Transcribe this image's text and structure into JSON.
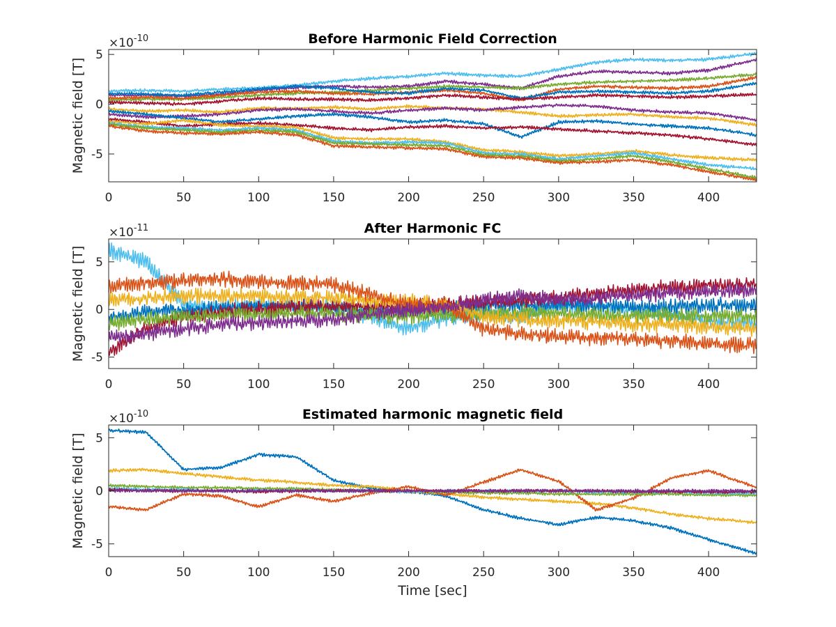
{
  "chart_data": [
    {
      "type": "line",
      "title": "Before Harmonic Field Correction",
      "ylabel": "Magnetic field [T]",
      "xlabel": "",
      "exponent_base": "×10",
      "exponent_power": "-10",
      "xlim": [
        0,
        432
      ],
      "ylim": [
        -7.8,
        5.5
      ],
      "xticks": [
        0,
        50,
        100,
        150,
        200,
        250,
        300,
        350,
        400
      ],
      "yticks": [
        -5,
        0,
        5
      ],
      "grid": false,
      "legend": "none",
      "x": [
        0,
        25,
        50,
        75,
        100,
        125,
        150,
        175,
        200,
        225,
        250,
        275,
        300,
        325,
        350,
        375,
        400,
        432
      ],
      "series": [
        {
          "color": "#4DBEEE",
          "values": [
            1.3,
            1.4,
            1.3,
            1.5,
            1.6,
            1.9,
            2.3,
            2.6,
            2.8,
            3.1,
            2.9,
            2.8,
            3.5,
            4.2,
            4.5,
            4.4,
            4.5,
            5.1
          ]
        },
        {
          "color": "#7E2F8E",
          "values": [
            0.9,
            0.9,
            0.8,
            1.0,
            1.4,
            1.7,
            1.8,
            1.7,
            1.8,
            2.3,
            2.0,
            1.6,
            2.8,
            3.3,
            3.2,
            3.1,
            3.4,
            4.5
          ]
        },
        {
          "color": "#77AC30",
          "values": [
            0.4,
            0.5,
            0.5,
            0.7,
            0.9,
            1.1,
            1.2,
            1.4,
            1.6,
            1.8,
            1.7,
            1.6,
            2.0,
            2.2,
            2.3,
            2.4,
            2.6,
            3.0
          ]
        },
        {
          "color": "#D95319",
          "values": [
            0.6,
            0.7,
            0.6,
            0.9,
            1.2,
            1.3,
            1.1,
            1.0,
            1.2,
            1.4,
            1.1,
            0.4,
            1.5,
            1.8,
            1.7,
            1.6,
            1.8,
            2.7
          ]
        },
        {
          "color": "#0072BD",
          "values": [
            1.1,
            1.0,
            0.9,
            1.2,
            1.5,
            1.8,
            1.6,
            1.2,
            1.1,
            1.6,
            1.4,
            0.6,
            1.2,
            1.3,
            1.2,
            1.1,
            1.3,
            2.1
          ]
        },
        {
          "color": "#A2142F",
          "values": [
            0.2,
            0.1,
            0.0,
            0.3,
            0.6,
            0.5,
            0.5,
            0.4,
            0.6,
            0.9,
            0.7,
            0.5,
            0.7,
            0.9,
            0.8,
            0.7,
            0.8,
            1.0
          ]
        },
        {
          "color": "#EDB120",
          "values": [
            -0.5,
            -0.7,
            -0.6,
            -0.8,
            -0.4,
            -0.4,
            -0.3,
            -0.5,
            -0.2,
            -0.4,
            -0.5,
            -0.8,
            -1.2,
            -1.1,
            -1.0,
            -1.3,
            -1.4,
            -2.1
          ]
        },
        {
          "color": "#7E2F8E",
          "values": [
            -1.0,
            -1.3,
            -1.2,
            -1.0,
            -0.6,
            -0.5,
            -0.7,
            -0.9,
            -0.6,
            -0.4,
            -0.6,
            -0.3,
            -0.1,
            -0.2,
            -0.6,
            -0.8,
            -0.9,
            -1.6
          ]
        },
        {
          "color": "#0072BD",
          "values": [
            -0.7,
            -1.0,
            -1.4,
            -1.8,
            -1.5,
            -1.2,
            -1.0,
            -1.3,
            -1.8,
            -1.6,
            -2.0,
            -3.3,
            -1.8,
            -1.7,
            -2.0,
            -2.2,
            -2.4,
            -3.1
          ]
        },
        {
          "color": "#A2142F",
          "values": [
            -1.5,
            -1.8,
            -2.2,
            -2.0,
            -1.9,
            -2.1,
            -2.4,
            -2.6,
            -2.3,
            -2.2,
            -2.4,
            -2.3,
            -2.5,
            -2.7,
            -2.9,
            -3.1,
            -3.5,
            -4.1
          ]
        },
        {
          "color": "#EDB120",
          "values": [
            -1.7,
            -2.0,
            -1.6,
            -2.1,
            -2.2,
            -2.3,
            -3.4,
            -3.5,
            -3.5,
            -3.8,
            -4.6,
            -4.8,
            -5.2,
            -5.0,
            -4.7,
            -5.1,
            -5.4,
            -5.6
          ]
        },
        {
          "color": "#4DBEEE",
          "values": [
            -1.9,
            -2.3,
            -2.4,
            -2.6,
            -2.4,
            -2.6,
            -3.7,
            -3.9,
            -3.8,
            -3.9,
            -4.9,
            -5.0,
            -5.5,
            -5.2,
            -4.9,
            -5.5,
            -6.1,
            -6.5
          ]
        },
        {
          "color": "#77AC30",
          "values": [
            -2.0,
            -2.4,
            -2.6,
            -2.8,
            -2.6,
            -2.8,
            -3.9,
            -4.0,
            -4.1,
            -4.2,
            -5.1,
            -5.2,
            -5.7,
            -5.5,
            -5.2,
            -5.8,
            -6.5,
            -7.4
          ]
        },
        {
          "color": "#D95319",
          "values": [
            -2.2,
            -2.7,
            -2.9,
            -3.0,
            -2.8,
            -3.1,
            -4.2,
            -4.3,
            -4.4,
            -4.5,
            -5.3,
            -5.4,
            -5.9,
            -5.8,
            -5.6,
            -6.1,
            -6.8,
            -7.6
          ]
        }
      ]
    },
    {
      "type": "line",
      "title": "After Harmonic FC",
      "ylabel": "Magnetic field [T]",
      "xlabel": "",
      "exponent_base": "×10",
      "exponent_power": "-11",
      "xlim": [
        0,
        432
      ],
      "ylim": [
        -6.2,
        7.4
      ],
      "xticks": [
        0,
        50,
        100,
        150,
        200,
        250,
        300,
        350,
        400
      ],
      "yticks": [
        -5,
        0,
        5
      ],
      "grid": false,
      "legend": "none",
      "x": [
        0,
        25,
        50,
        75,
        100,
        125,
        150,
        175,
        200,
        225,
        250,
        275,
        300,
        325,
        350,
        375,
        400,
        432
      ],
      "series": [
        {
          "color": "#4DBEEE",
          "values": [
            6.2,
            5.0,
            0.5,
            0.3,
            0.5,
            0.4,
            0.3,
            -0.8,
            -2.0,
            -0.9,
            -0.5,
            -0.7,
            0.2,
            0.4,
            -0.2,
            -0.6,
            -1.2,
            -1.4
          ]
        },
        {
          "color": "#0072BD",
          "values": [
            -1.0,
            -0.3,
            0.0,
            0.2,
            0.4,
            0.3,
            0.2,
            0.0,
            -0.3,
            0.0,
            0.3,
            0.4,
            0.5,
            0.4,
            0.2,
            0.3,
            0.4,
            0.5
          ]
        },
        {
          "color": "#A2142F",
          "values": [
            -4.5,
            -2.0,
            -0.7,
            -0.3,
            0.0,
            0.3,
            0.4,
            0.3,
            0.3,
            0.5,
            0.8,
            1.0,
            1.3,
            1.6,
            2.0,
            2.3,
            2.5,
            2.6
          ]
        },
        {
          "color": "#77AC30",
          "values": [
            -1.5,
            -1.0,
            -0.8,
            -0.6,
            -0.5,
            -0.4,
            -0.5,
            -0.6,
            -0.7,
            -0.6,
            -0.5,
            -0.4,
            -0.5,
            -0.6,
            -0.7,
            -0.6,
            -0.7,
            -0.8
          ]
        },
        {
          "color": "#EDB120",
          "values": [
            1.0,
            1.2,
            1.4,
            1.5,
            1.4,
            1.3,
            1.2,
            0.9,
            0.8,
            0.6,
            -0.8,
            -1.0,
            -1.2,
            -1.3,
            -1.5,
            -1.6,
            -1.8,
            -2.0
          ]
        },
        {
          "color": "#D95319",
          "values": [
            2.5,
            2.8,
            3.0,
            3.2,
            3.0,
            2.8,
            2.6,
            1.5,
            0.5,
            0.4,
            -2.0,
            -2.5,
            -2.9,
            -3.0,
            -3.1,
            -3.3,
            -3.6,
            -3.8
          ]
        },
        {
          "color": "#7E2F8E",
          "values": [
            -3.0,
            -2.5,
            -2.0,
            -1.6,
            -1.4,
            -1.2,
            -1.1,
            -0.5,
            0.0,
            0.3,
            0.9,
            1.4,
            1.0,
            1.2,
            1.5,
            1.7,
            1.9,
            2.1
          ]
        }
      ]
    },
    {
      "type": "line",
      "title": "Estimated harmonic magnetic field",
      "ylabel": "Magnetic field [T]",
      "xlabel": "Time [sec]",
      "exponent_base": "×10",
      "exponent_power": "-10",
      "xlim": [
        0,
        432
      ],
      "ylim": [
        -6.2,
        6.2
      ],
      "xticks": [
        0,
        50,
        100,
        150,
        200,
        250,
        300,
        350,
        400
      ],
      "yticks": [
        -5,
        0,
        5
      ],
      "grid": false,
      "legend": "none",
      "x": [
        0,
        25,
        50,
        75,
        100,
        125,
        150,
        175,
        200,
        225,
        250,
        275,
        300,
        325,
        350,
        375,
        400,
        432
      ],
      "series": [
        {
          "color": "#0072BD",
          "values": [
            5.7,
            5.5,
            2.0,
            2.2,
            3.4,
            3.2,
            1.0,
            0.2,
            0.0,
            -0.5,
            -1.8,
            -2.6,
            -3.2,
            -2.5,
            -2.8,
            -3.5,
            -4.6,
            -5.9
          ]
        },
        {
          "color": "#EDB120",
          "values": [
            1.9,
            2.0,
            1.6,
            1.3,
            1.0,
            0.8,
            0.5,
            0.4,
            0.0,
            -0.3,
            -0.6,
            -0.8,
            -1.0,
            -1.2,
            -1.6,
            -2.2,
            -2.6,
            -3.0
          ]
        },
        {
          "color": "#D95319",
          "values": [
            -1.5,
            -1.8,
            -0.3,
            -0.5,
            -1.5,
            -0.4,
            -1.0,
            -0.2,
            0.4,
            -0.4,
            0.8,
            2.0,
            0.9,
            -1.8,
            -0.7,
            1.2,
            1.9,
            0.3
          ]
        },
        {
          "color": "#77AC30",
          "values": [
            0.5,
            0.4,
            0.3,
            0.3,
            0.2,
            0.2,
            0.1,
            0.0,
            -0.1,
            -0.1,
            -0.2,
            -0.2,
            -0.3,
            -0.3,
            -0.3,
            -0.3,
            -0.4,
            -0.4
          ]
        },
        {
          "color": "#4DBEEE",
          "values": [
            0.2,
            0.1,
            0.1,
            0.0,
            0.0,
            0.0,
            0.0,
            0.0,
            -0.1,
            0.0,
            0.0,
            0.0,
            0.0,
            -0.1,
            -0.1,
            -0.1,
            -0.2,
            -0.2
          ]
        },
        {
          "color": "#A2142F",
          "values": [
            0.1,
            0.0,
            0.0,
            0.0,
            -0.1,
            0.0,
            0.0,
            0.0,
            0.0,
            0.0,
            0.0,
            0.0,
            0.0,
            0.0,
            -0.1,
            -0.1,
            -0.1,
            -0.1
          ]
        },
        {
          "color": "#7E2F8E",
          "values": [
            0.0,
            0.0,
            0.0,
            0.0,
            0.0,
            0.0,
            0.0,
            0.0,
            0.0,
            0.0,
            0.0,
            0.0,
            0.0,
            0.0,
            0.0,
            0.0,
            0.0,
            0.0
          ]
        }
      ]
    }
  ]
}
